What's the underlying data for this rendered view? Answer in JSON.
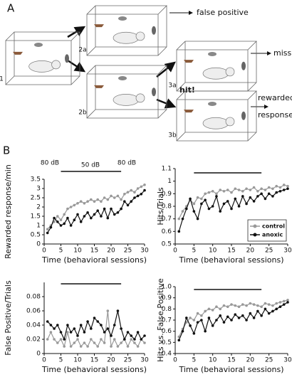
{
  "figure": {
    "panel_a": "A",
    "panel_b": "B",
    "boxes": [
      "1",
      "2a",
      "2b",
      "3a",
      "3b"
    ],
    "outcomes": {
      "false_positive": "false positive",
      "miss": "miss",
      "rewarded": [
        "rewarded",
        "response"
      ]
    },
    "hit": "hit!"
  },
  "chart_data": [
    {
      "type": "line",
      "ylabel": "Rewarded response/min",
      "xlabel": "Time (behavioral sessions)",
      "annotations": [
        "80 dB",
        "50 dB",
        "80 dB"
      ],
      "bar_x": [
        5,
        23
      ],
      "x": [
        1,
        2,
        3,
        4,
        5,
        6,
        7,
        8,
        9,
        10,
        11,
        12,
        13,
        14,
        15,
        16,
        17,
        18,
        19,
        20,
        21,
        22,
        23,
        24,
        25,
        26,
        27,
        28,
        29,
        30
      ],
      "xlim": [
        0,
        30
      ],
      "xticks": [
        0,
        5,
        10,
        15,
        20,
        25,
        30
      ],
      "ylim": [
        0,
        3.5
      ],
      "yticks": [
        0,
        0.5,
        1,
        1.5,
        2,
        2.5,
        3,
        3.5
      ],
      "series": [
        {
          "name": "control",
          "color": "#999999",
          "values": [
            0.8,
            1.0,
            1.2,
            1.5,
            1.3,
            1.6,
            1.9,
            2.0,
            2.1,
            2.2,
            2.3,
            2.2,
            2.3,
            2.4,
            2.3,
            2.4,
            2.3,
            2.5,
            2.4,
            2.6,
            2.5,
            2.6,
            2.4,
            2.7,
            2.8,
            2.9,
            2.8,
            3.0,
            3.1,
            3.2
          ]
        },
        {
          "name": "anoxic",
          "color": "#111111",
          "values": [
            0.6,
            0.9,
            1.4,
            1.2,
            1.0,
            1.1,
            1.4,
            1.0,
            1.3,
            1.6,
            1.2,
            1.5,
            1.7,
            1.4,
            1.6,
            1.8,
            1.5,
            1.9,
            1.4,
            1.9,
            1.6,
            1.7,
            1.9,
            2.3,
            2.1,
            2.3,
            2.5,
            2.6,
            2.7,
            2.9
          ]
        }
      ]
    },
    {
      "type": "line",
      "ylabel": "Hits/Trials",
      "xlabel": "Time (behavioral sessions)",
      "bar_x": [
        5,
        23
      ],
      "legend": "lower right",
      "x": [
        1,
        2,
        3,
        4,
        5,
        6,
        7,
        8,
        9,
        10,
        11,
        12,
        13,
        14,
        15,
        16,
        17,
        18,
        19,
        20,
        21,
        22,
        23,
        24,
        25,
        26,
        27,
        28,
        29,
        30
      ],
      "xlim": [
        0,
        30
      ],
      "xticks": [
        0,
        5,
        10,
        15,
        20,
        25,
        30
      ],
      "ylim": [
        0.5,
        1.1
      ],
      "yticks": [
        0.5,
        0.6,
        0.7,
        0.8,
        0.9,
        1,
        1.1
      ],
      "series": [
        {
          "name": "control",
          "color": "#999999",
          "values": [
            0.7,
            0.76,
            0.8,
            0.85,
            0.82,
            0.87,
            0.86,
            0.9,
            0.91,
            0.92,
            0.9,
            0.93,
            0.92,
            0.93,
            0.91,
            0.94,
            0.93,
            0.92,
            0.94,
            0.93,
            0.95,
            0.92,
            0.94,
            0.93,
            0.95,
            0.94,
            0.96,
            0.95,
            0.97,
            0.96
          ]
        },
        {
          "name": "anoxic",
          "color": "#111111",
          "values": [
            0.6,
            0.7,
            0.78,
            0.86,
            0.76,
            0.7,
            0.82,
            0.85,
            0.78,
            0.8,
            0.88,
            0.76,
            0.82,
            0.84,
            0.78,
            0.86,
            0.8,
            0.88,
            0.82,
            0.87,
            0.84,
            0.88,
            0.9,
            0.86,
            0.9,
            0.88,
            0.91,
            0.92,
            0.93,
            0.94
          ]
        }
      ]
    },
    {
      "type": "line",
      "ylabel": "False Positive/Trials",
      "xlabel": "Time (behavioral sessions)",
      "bar_x": [
        5,
        23
      ],
      "x": [
        1,
        2,
        3,
        4,
        5,
        6,
        7,
        8,
        9,
        10,
        11,
        12,
        13,
        14,
        15,
        16,
        17,
        18,
        19,
        20,
        21,
        22,
        23,
        24,
        25,
        26,
        27,
        28,
        29,
        30
      ],
      "xlim": [
        0,
        30
      ],
      "xticks": [
        0,
        5,
        10,
        15,
        20,
        25,
        30
      ],
      "ylim": [
        0,
        0.1
      ],
      "yticks": [
        0,
        0.02,
        0.04,
        0.06,
        0.08
      ],
      "series": [
        {
          "name": "control",
          "color": "#999999",
          "values": [
            0.02,
            0.03,
            0.02,
            0.015,
            0.02,
            0.01,
            0.03,
            0.01,
            0.015,
            0.02,
            0.01,
            0.015,
            0.01,
            0.02,
            0.015,
            0.01,
            0.02,
            0.015,
            0.06,
            0.01,
            0.02,
            0.01,
            0.015,
            0.02,
            0.01,
            0.02,
            0.015,
            0.01,
            0.02,
            0.015
          ]
        },
        {
          "name": "anoxic",
          "color": "#111111",
          "values": [
            0.045,
            0.04,
            0.035,
            0.04,
            0.03,
            0.02,
            0.04,
            0.03,
            0.035,
            0.025,
            0.04,
            0.03,
            0.045,
            0.035,
            0.05,
            0.045,
            0.04,
            0.03,
            0.035,
            0.025,
            0.04,
            0.06,
            0.035,
            0.02,
            0.03,
            0.025,
            0.02,
            0.03,
            0.02,
            0.025
          ]
        }
      ]
    },
    {
      "type": "line",
      "ylabel": "Hits vs. False Positive",
      "xlabel": "Time (behavioral sessions)",
      "bar_x": [
        5,
        23
      ],
      "x": [
        1,
        2,
        3,
        4,
        5,
        6,
        7,
        8,
        9,
        10,
        11,
        12,
        13,
        14,
        15,
        16,
        17,
        18,
        19,
        20,
        21,
        22,
        23,
        24,
        25,
        26,
        27,
        28,
        29,
        30
      ],
      "xlim": [
        0,
        30
      ],
      "xticks": [
        0,
        5,
        10,
        15,
        20,
        25,
        30
      ],
      "ylim": [
        0.4,
        1.0
      ],
      "yticks": [
        0.4,
        0.5,
        0.6,
        0.7,
        0.8,
        0.9,
        {
          "value": 1,
          "label": "1.0"
        }
      ],
      "series": [
        {
          "name": "control",
          "color": "#999999",
          "values": [
            0.55,
            0.62,
            0.68,
            0.72,
            0.7,
            0.76,
            0.74,
            0.78,
            0.8,
            0.79,
            0.82,
            0.8,
            0.83,
            0.82,
            0.84,
            0.83,
            0.82,
            0.84,
            0.83,
            0.85,
            0.84,
            0.83,
            0.82,
            0.85,
            0.84,
            0.83,
            0.85,
            0.86,
            0.87,
            0.88
          ]
        },
        {
          "name": "anoxic",
          "color": "#111111",
          "values": [
            0.52,
            0.6,
            0.72,
            0.65,
            0.58,
            0.68,
            0.7,
            0.6,
            0.72,
            0.65,
            0.7,
            0.74,
            0.68,
            0.73,
            0.7,
            0.75,
            0.72,
            0.74,
            0.7,
            0.76,
            0.72,
            0.78,
            0.74,
            0.8,
            0.76,
            0.78,
            0.8,
            0.82,
            0.84,
            0.86
          ]
        }
      ]
    }
  ]
}
